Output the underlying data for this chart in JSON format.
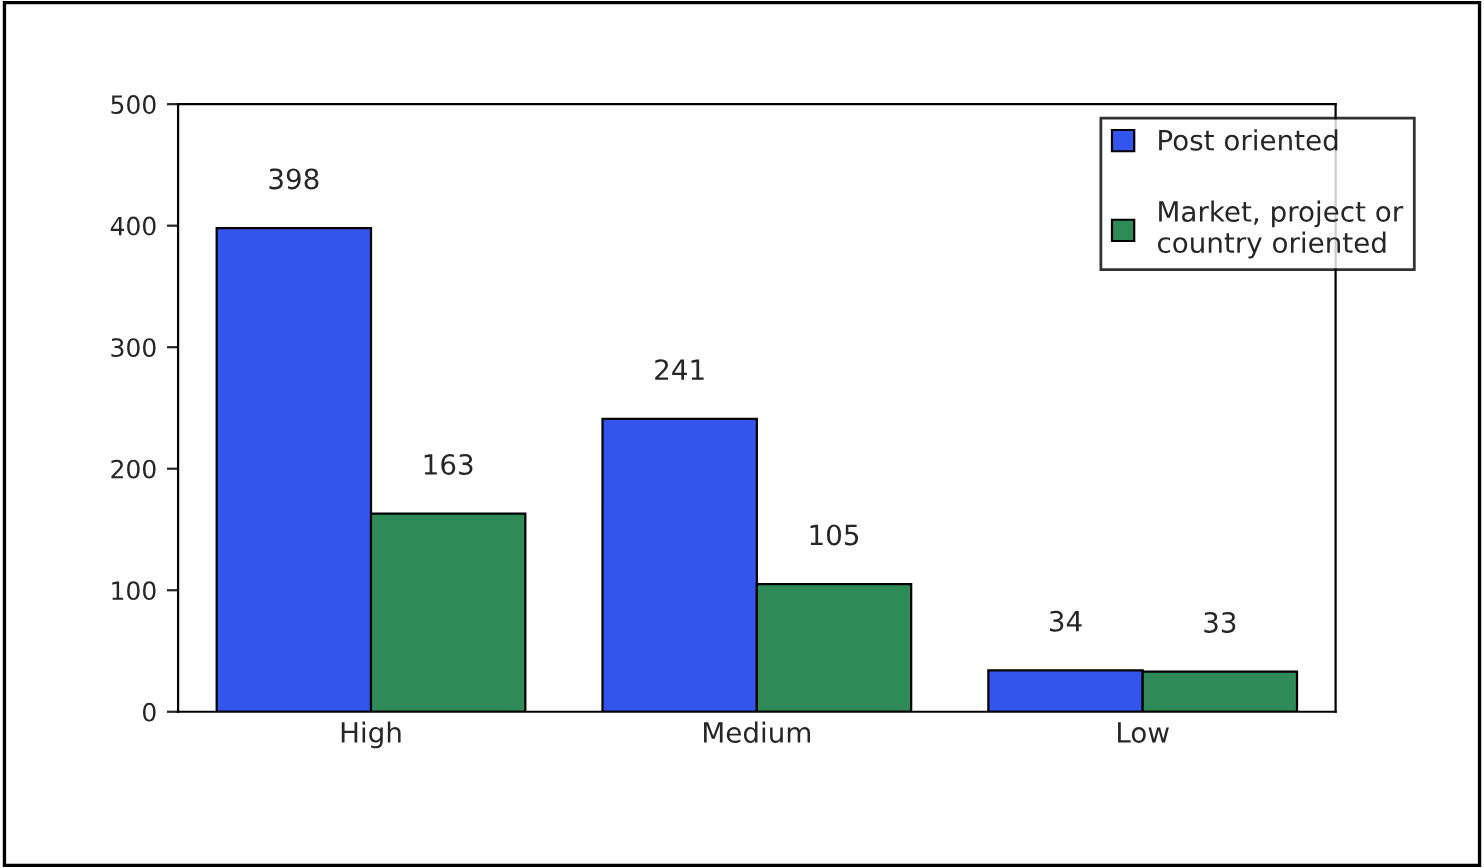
{
  "chart_data": {
    "type": "bar",
    "categories": [
      "High",
      "Medium",
      "Low"
    ],
    "series": [
      {
        "name": "Post oriented",
        "color": "#3355ee",
        "values": [
          398,
          241,
          34
        ]
      },
      {
        "name": "Market, project or\ncountry oriented",
        "color": "#2e8b57",
        "values": [
          163,
          105,
          33
        ]
      }
    ],
    "ylim": [
      0,
      500
    ],
    "yticks": [
      0,
      100,
      200,
      300,
      400,
      500
    ],
    "data_labels": true,
    "grid": false,
    "legend": "top right"
  }
}
